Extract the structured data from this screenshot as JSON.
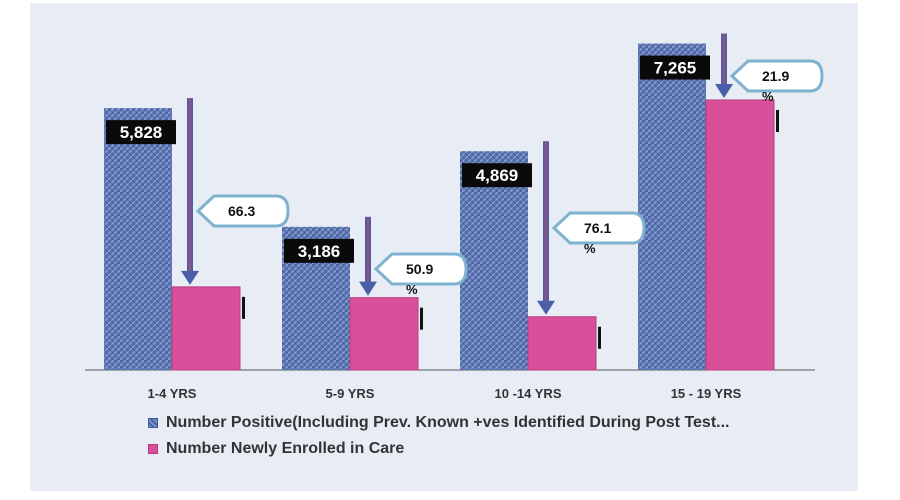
{
  "chart_data": {
    "type": "bar",
    "categories": [
      "1-4 YRS",
      "5-9 YRS",
      "10 -14 YRS",
      "15 - 19 YRS"
    ],
    "series": [
      {
        "name": "Number Positive(Including Prev. Known +ves Identified During Post Test...",
        "values": [
          5828,
          3186,
          4869,
          7265
        ],
        "labels": [
          "5,828",
          "3,186",
          "4,869",
          "7,265"
        ],
        "color": "#5f78b8"
      },
      {
        "name": "Number Newly Enrolled in Care",
        "values": [
          1850,
          1610,
          1185,
          6010
        ],
        "color": "#d9509a"
      }
    ],
    "callouts": [
      {
        "line1": "66.3",
        "line2": ""
      },
      {
        "line1": "50.9",
        "line2": "%"
      },
      {
        "line1": "76.1",
        "line2": "%"
      },
      {
        "line1": "21.9",
        "line2": "%"
      }
    ],
    "ylim": [
      0,
      7500
    ],
    "legend_position": "bottom",
    "grid": false
  }
}
